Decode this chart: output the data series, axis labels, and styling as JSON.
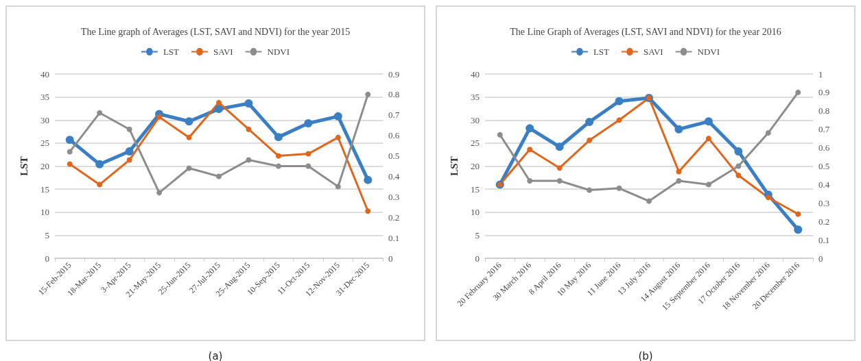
{
  "chart_data": [
    {
      "type": "line",
      "title": "The Line graph of Averages (LST, SAVI and NDVI) for the year 2015",
      "ylabel": "LST",
      "annotations": [
        "(a)"
      ],
      "categories": [
        "15-Feb-2015",
        "18-Mar-2015",
        "3-Apr-2015",
        "21-May-2015",
        "25-Jun-2015",
        "27-Jul-2015",
        "25-Aug-2015",
        "10-Sep-2015",
        "11-Oct-2015",
        "12-Nov-2015",
        "31-Dec-2015"
      ],
      "series": [
        {
          "name": "LST",
          "color": "#3a7fc4",
          "values": [
            25.7,
            20.4,
            23.2,
            31.3,
            29.7,
            32.4,
            33.6,
            26.3,
            29.3,
            30.8,
            17.0
          ]
        },
        {
          "name": "SAVI",
          "color": "#e0661c",
          "axis": "y2",
          "values": [
            0.46,
            0.36,
            0.48,
            0.69,
            0.59,
            0.76,
            0.63,
            0.5,
            0.51,
            0.59,
            0.23
          ]
        },
        {
          "name": "NDVI",
          "color": "#8c8c8c",
          "axis": "y2",
          "values": [
            0.52,
            0.71,
            0.63,
            0.32,
            0.44,
            0.4,
            0.48,
            0.45,
            0.45,
            0.35,
            0.8
          ]
        }
      ],
      "ylim": [
        0,
        40
      ],
      "yticks": [
        0,
        5,
        10,
        15,
        20,
        25,
        30,
        35,
        40
      ],
      "y2lim": [
        0,
        0.9
      ],
      "y2ticks": [
        0,
        0.1,
        0.2,
        0.3,
        0.4,
        0.5,
        0.6,
        0.7,
        0.8,
        0.9
      ],
      "grid": "y",
      "legend": "top",
      "marker": "circle",
      "line_style": "solid"
    },
    {
      "type": "line",
      "title": "The Line Graph of Averages (LST, SAVI and NDVI) for the year 2016",
      "ylabel": "LST",
      "annotations": [
        "(b)"
      ],
      "categories": [
        "20 February 2016",
        "30 March 2016",
        "8 April 2016",
        "10 May 2016",
        "11 June 2016",
        "13 July 2016",
        "14 August 2016",
        "15 September 2016",
        "17 October 2016",
        "18 November 2016",
        "20 December 2016"
      ],
      "series": [
        {
          "name": "LST",
          "color": "#3a7fc4",
          "values": [
            16.0,
            28.2,
            24.2,
            29.6,
            34.1,
            34.8,
            28.0,
            29.7,
            23.2,
            13.8,
            6.2
          ]
        },
        {
          "name": "SAVI",
          "color": "#e0661c",
          "axis": "y2",
          "values": [
            0.4,
            0.59,
            0.49,
            0.64,
            0.75,
            0.87,
            0.47,
            0.65,
            0.45,
            0.33,
            0.24
          ]
        },
        {
          "name": "NDVI",
          "color": "#8c8c8c",
          "axis": "y2",
          "values": [
            0.67,
            0.42,
            0.42,
            0.37,
            0.38,
            0.31,
            0.42,
            0.4,
            0.5,
            0.68,
            0.9
          ]
        }
      ],
      "ylim": [
        0,
        40
      ],
      "yticks": [
        0,
        5,
        10,
        15,
        20,
        25,
        30,
        35,
        40
      ],
      "y2lim": [
        0,
        1
      ],
      "y2ticks": [
        0,
        0.1,
        0.2,
        0.3,
        0.4,
        0.5,
        0.6,
        0.7,
        0.8,
        0.9,
        1
      ],
      "grid": "y",
      "legend": "top",
      "marker": "circle",
      "line_style": "solid"
    }
  ]
}
